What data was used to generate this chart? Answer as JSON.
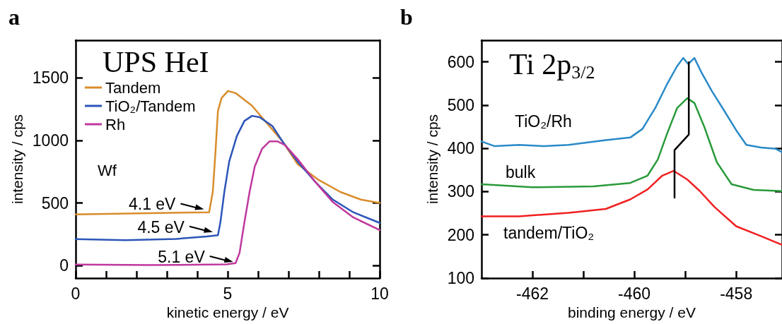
{
  "chart_data": [
    {
      "type": "line",
      "title": "UPS HeI",
      "xlabel": "kinetic energy / eV",
      "ylabel": "intensity / cps",
      "xlim": [
        0,
        10
      ],
      "ylim": [
        -100,
        1800
      ],
      "xticks": [
        0,
        {
          "value": 1,
          "label": null
        },
        {
          "value": 2,
          "label": null
        },
        {
          "value": 3,
          "label": null
        },
        {
          "value": 4,
          "label": null
        },
        5,
        {
          "value": 6,
          "label": null
        },
        {
          "value": 7,
          "label": null
        },
        {
          "value": 8,
          "label": null
        },
        {
          "value": 9,
          "label": null
        },
        10
      ],
      "yticks": [
        0,
        500,
        1000,
        1500
      ],
      "grid": false,
      "legend": "top left",
      "marker": "none",
      "line_style": "solid",
      "annotations": [
        "a",
        "Wf",
        {
          "text": "4.1 eV",
          "x": 4.22,
          "y": 450
        },
        {
          "text": "4.5 eV",
          "x": 4.51,
          "y": 268
        },
        {
          "text": "5.1 eV",
          "x": 5.18,
          "y": 30
        }
      ],
      "series": [
        {
          "name": "Tandem",
          "color": "#d98c2b",
          "x": [
            0,
            4.39,
            4.51,
            4.6,
            4.68,
            4.8,
            5.01,
            5.26,
            5.8,
            6.3,
            6.8,
            7.3,
            7.96,
            8.71,
            9.38,
            10
          ],
          "values": [
            409,
            426,
            588,
            912,
            1236,
            1338,
            1395,
            1378,
            1277,
            1135,
            993,
            810,
            689,
            588,
            527,
            501
          ]
        },
        {
          "name": "TiO₂/Tandem",
          "color": "#2b55b8",
          "x": [
            0,
            1.65,
            3.31,
            4.31,
            4.68,
            4.76,
            4.89,
            5.05,
            5.3,
            5.55,
            5.8,
            6.05,
            6.47,
            6.8,
            7.3,
            7.88,
            8.46,
            9.13,
            10
          ],
          "values": [
            211,
            203,
            213,
            233,
            243,
            345,
            588,
            831,
            1034,
            1155,
            1196,
            1186,
            1115,
            993,
            831,
            669,
            527,
            426,
            341
          ]
        },
        {
          "name": "Rh",
          "color": "#c0389e",
          "x": [
            0,
            2.48,
            4.97,
            5.26,
            5.39,
            5.55,
            5.72,
            5.89,
            6.13,
            6.38,
            6.63,
            6.88,
            7.3,
            7.88,
            8.46,
            9.13,
            10
          ],
          "values": [
            8,
            4,
            10,
            20,
            101,
            345,
            588,
            791,
            932,
            993,
            993,
            963,
            851,
            669,
            507,
            385,
            284
          ]
        }
      ]
    },
    {
      "type": "line",
      "title": "Ti 2p$_{3/2}$",
      "xlabel": "binding energy / eV",
      "ylabel": "intensity / cps",
      "xlim": [
        -463,
        -457.1
      ],
      "ylim": [
        100,
        650
      ],
      "xticks": [
        -462,
        {
          "value": -461,
          "label": null
        },
        -460,
        {
          "value": -459,
          "label": null
        },
        -458
      ],
      "yticks": [
        100,
        200,
        300,
        400,
        500,
        600
      ],
      "grid": false,
      "legend": false,
      "marker": "none",
      "line_style": "solid",
      "annotations": [
        "b"
      ],
      "series": [
        {
          "name": "TiO₂/Rh",
          "color": "#2a8ac8",
          "x": [
            -463,
            -462.74,
            -462.26,
            -461.77,
            -461.29,
            -460.56,
            -460.08,
            -459.84,
            -459.59,
            -459.35,
            -459.16,
            -459.04,
            -458.94,
            -458.82,
            -458.67,
            -458.48,
            -458.24,
            -458,
            -457.8,
            -457.51,
            -457.22,
            -457.1
          ],
          "values": [
            416,
            405,
            408,
            405,
            408,
            419,
            425,
            445,
            493,
            550,
            590,
            609,
            595,
            609,
            573,
            533,
            488,
            442,
            408,
            402,
            399,
            391
          ]
        },
        {
          "name": "bulk",
          "color": "#2a9a3a",
          "x": [
            -463,
            -462.01,
            -460.8,
            -460.08,
            -459.74,
            -459.54,
            -459.35,
            -459.16,
            -458.96,
            -458.82,
            -458.62,
            -458.38,
            -458.09,
            -457.66,
            -457.1
          ],
          "values": [
            317,
            310,
            312,
            320,
            337,
            374,
            436,
            493,
            516,
            505,
            448,
            368,
            317,
            304,
            301
          ]
        },
        {
          "name": "tandem/TiO₂",
          "color": "#f02020",
          "x": [
            -463,
            -462.26,
            -461.29,
            -460.56,
            -460.08,
            -459.74,
            -459.45,
            -459.23,
            -458.96,
            -458.72,
            -458.43,
            -458,
            -457.51,
            -457.1
          ],
          "values": [
            243,
            243,
            251,
            260,
            282,
            305,
            337,
            348,
            328,
            302,
            265,
            220,
            197,
            177
          ]
        },
        {
          "color": "#000000",
          "x": [
            -459.21,
            -459.21,
            -458.93,
            -458.93
          ],
          "values": [
            286,
            396,
            432,
            599
          ]
        }
      ]
    }
  ]
}
